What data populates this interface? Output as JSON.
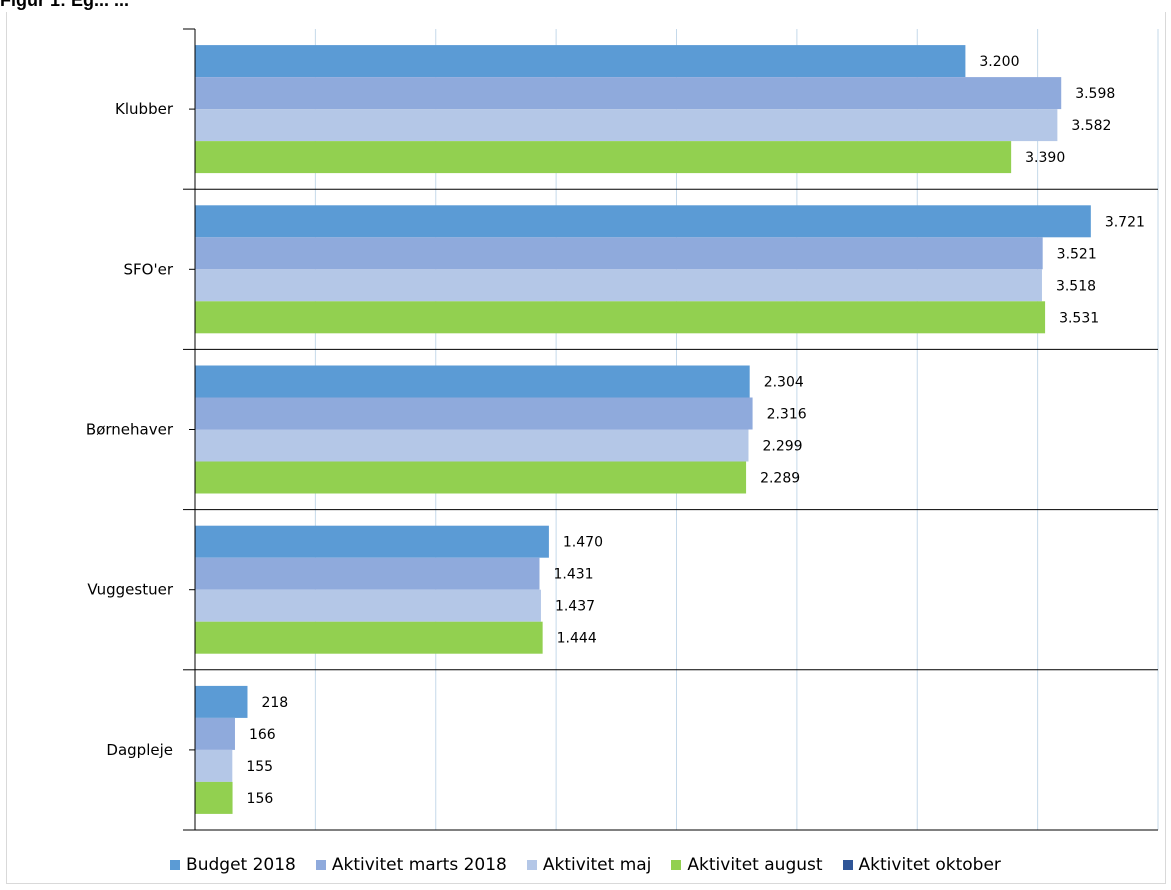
{
  "title": "Figur 1: Eg... ...",
  "chart_data": {
    "type": "bar",
    "orientation": "horizontal",
    "categories": [
      "Klubber",
      "SFO'er",
      "Børnehaver",
      "Vuggestuer",
      "Dagpleje"
    ],
    "series": [
      {
        "name": "Budget 2018",
        "color": "#5b9bd5",
        "values": [
          3200,
          3721,
          2304,
          1470,
          218
        ],
        "labels": [
          "3.200",
          "3.721",
          "2.304",
          "1.470",
          "218"
        ]
      },
      {
        "name": "Aktivitet marts 2018",
        "color": "#8faadc",
        "values": [
          3598,
          3521,
          2316,
          1431,
          166
        ],
        "labels": [
          "3.598",
          "3.521",
          "2.316",
          "1.431",
          "166"
        ]
      },
      {
        "name": "Aktivitet maj",
        "color": "#b4c7e7",
        "values": [
          3582,
          3518,
          2299,
          1437,
          155
        ],
        "labels": [
          "3.582",
          "3.518",
          "2.299",
          "1.437",
          "155"
        ]
      },
      {
        "name": "Aktivitet august",
        "color": "#92d050",
        "values": [
          3390,
          3531,
          2289,
          1444,
          156
        ],
        "labels": [
          "3.390",
          "3.531",
          "2.289",
          "1.444",
          "156"
        ]
      },
      {
        "name": "Aktivitet oktober",
        "color": "#2f5597",
        "values": [
          null,
          null,
          null,
          null,
          null
        ],
        "labels": [
          "",
          "",
          "",
          "",
          ""
        ]
      }
    ],
    "xlim": [
      0,
      4000
    ],
    "grid": true,
    "legend_position": "bottom"
  }
}
